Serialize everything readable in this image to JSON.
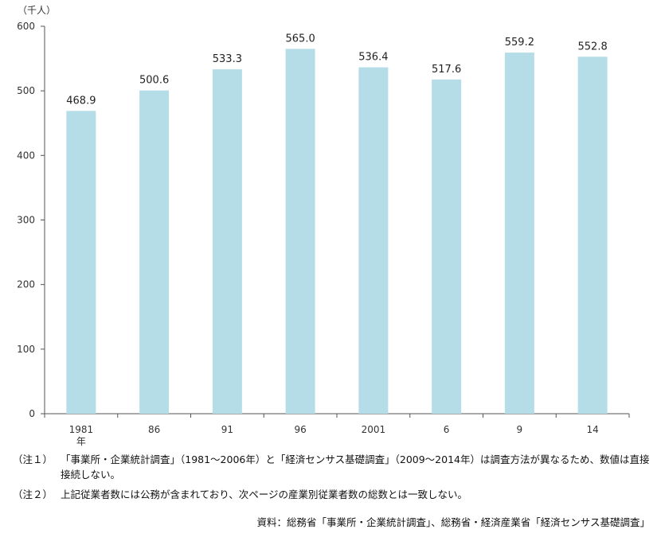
{
  "chart_data": {
    "type": "bar",
    "unit_label": "（千人）",
    "categories": [
      "1981\n年",
      "86",
      "91",
      "96",
      "2001",
      "6",
      "9",
      "14"
    ],
    "values": [
      468.9,
      500.6,
      533.3,
      565.0,
      536.4,
      517.6,
      559.2,
      552.8
    ],
    "value_labels": [
      "468.9",
      "500.6",
      "533.3",
      "565.0",
      "536.4",
      "517.6",
      "559.2",
      "552.8"
    ],
    "y_ticks": [
      0,
      100,
      200,
      300,
      400,
      500,
      600
    ],
    "ylim": [
      0,
      600
    ],
    "grid": false,
    "bar_color": "#b5dde7"
  },
  "notes": [
    {
      "label": "（注１）",
      "text": "「事業所・企業統計調査」（1981～2006年）と「経済センサス基礎調査」（2009～2014年）は調査方法が異なるため、数値は直接接続しない。"
    },
    {
      "label": "（注２）",
      "text": "上記従業者数には公務が含まれており、次ページの産業別従業者数の総数とは一致しない。"
    }
  ],
  "source": "資料：総務省「事業所・企業統計調査」、総務省・経済産業省「経済センサス基礎調査」"
}
